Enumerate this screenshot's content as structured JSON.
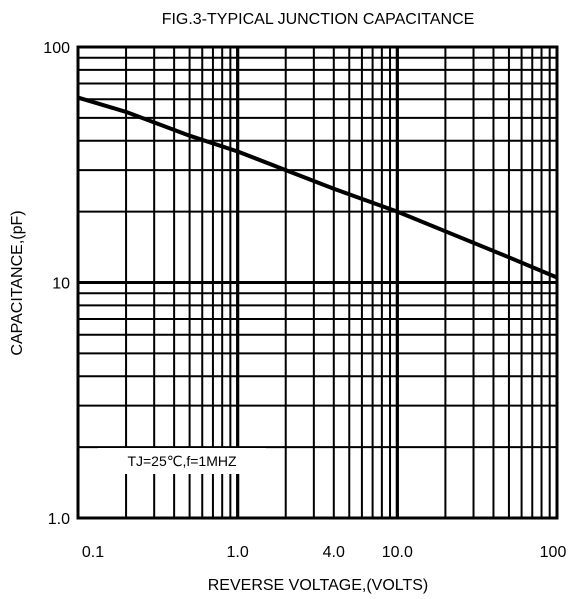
{
  "chart_data": {
    "type": "line",
    "title": "FIG.3-TYPICAL JUNCTION CAPACITANCE",
    "xlabel": "REVERSE VOLTAGE,(VOLTS)",
    "ylabel": "CAPACITANCE,(pF)",
    "x_scale": "log",
    "y_scale": "log",
    "xlim": [
      0.1,
      100
    ],
    "ylim": [
      1.0,
      100
    ],
    "grid": true,
    "x_ticks": [
      {
        "value": 0.1,
        "label": "0.1"
      },
      {
        "value": 1.0,
        "label": "1.0"
      },
      {
        "value": 4.0,
        "label": "4.0"
      },
      {
        "value": 10,
        "label": "10.0"
      },
      {
        "value": 100,
        "label": "100"
      }
    ],
    "y_ticks": [
      {
        "value": 1.0,
        "label": "1.0"
      },
      {
        "value": 10,
        "label": "10"
      },
      {
        "value": 100,
        "label": "100"
      }
    ],
    "annotation": "TJ=25℃,f=1MHZ",
    "series": [
      {
        "x": [
          0.1,
          0.2,
          0.5,
          1.0,
          2.0,
          4.0,
          10,
          20,
          50,
          100
        ],
        "y": [
          61,
          53,
          42,
          36,
          30,
          25,
          20,
          16.5,
          12.8,
          10.5
        ]
      }
    ]
  }
}
